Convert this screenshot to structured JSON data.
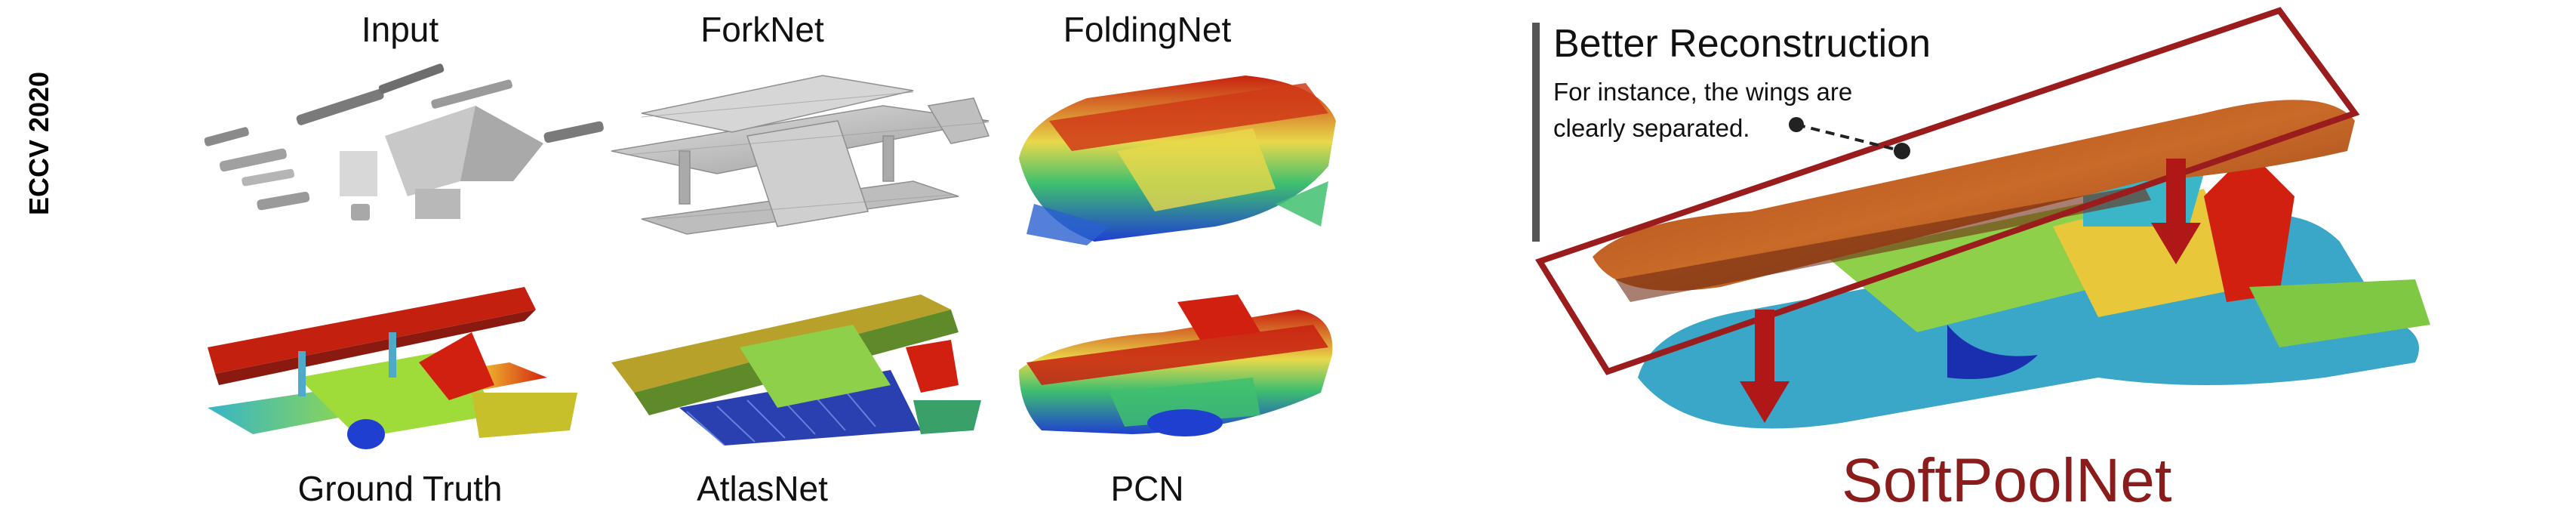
{
  "side_tag": "ECCV 2020",
  "panels": [
    {
      "id": "input",
      "label": "Input",
      "style": "sparse-gray"
    },
    {
      "id": "forknet",
      "label": "ForkNet",
      "style": "voxel-gray"
    },
    {
      "id": "foldingnet",
      "label": "FoldingNet",
      "style": "heatmap"
    },
    {
      "id": "ground_truth",
      "label": "Ground Truth",
      "style": "heatmap"
    },
    {
      "id": "atlasnet",
      "label": "AtlasNet",
      "style": "heatmap"
    },
    {
      "id": "pcn",
      "label": "PCN",
      "style": "heatmap"
    }
  ],
  "callout": {
    "title": "Better Reconstruction",
    "text_line1": "For instance, the wings are",
    "text_line2": "clearly separated."
  },
  "highlight": {
    "method": "SoftPoolNet",
    "box_color": "#9b1c1c",
    "arrow_color": "#b01818"
  },
  "palette": {
    "heat_low": "#1f3fd1",
    "heat_mid": "#3fbf6f",
    "heat_high_mid": "#e8d84a",
    "heat_high": "#c8200f",
    "gray_voxel": "#c8c8c8",
    "gray_sparse": "#8a8a8a"
  }
}
